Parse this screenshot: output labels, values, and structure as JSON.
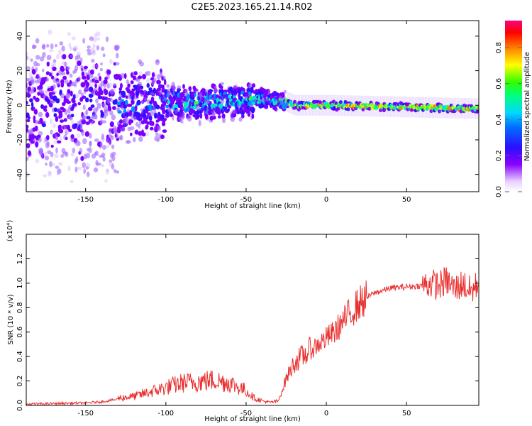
{
  "title": "C2E5.2023.165.21.14.R02",
  "chart_data": [
    {
      "type": "heatmap",
      "name": "spectrogram",
      "xlabel": "Height of straight line (km)",
      "ylabel": "Frequency (Hz)",
      "xlim": [
        -187,
        95
      ],
      "ylim": [
        -50,
        49
      ],
      "xticks": [
        -150,
        -100,
        -50,
        0,
        50
      ],
      "yticks": [
        -40,
        -20,
        0,
        20,
        40
      ],
      "band_center_hz": [
        {
          "x": -187,
          "y": -2
        },
        {
          "x": -150,
          "y": -1
        },
        {
          "x": -120,
          "y": 0
        },
        {
          "x": -100,
          "y": 2
        },
        {
          "x": -80,
          "y": 1
        },
        {
          "x": -60,
          "y": 2
        },
        {
          "x": -50,
          "y": 3
        },
        {
          "x": -40,
          "y": 4
        },
        {
          "x": -30,
          "y": 3
        },
        {
          "x": -25,
          "y": 2
        },
        {
          "x": -20,
          "y": 0
        },
        {
          "x": 0,
          "y": 0
        },
        {
          "x": 50,
          "y": -1
        },
        {
          "x": 95,
          "y": -2
        }
      ],
      "colorbar": {
        "label": "Normalized spectral amplitude",
        "range": [
          0.0,
          0.95
        ],
        "ticks": [
          0.0,
          0.2,
          0.4,
          0.6,
          0.8
        ]
      }
    },
    {
      "type": "line",
      "name": "snr",
      "xlabel": "Height of straight line (km)",
      "ylabel": "SNR (10 * v/v)",
      "scale_label": "(x10⁴)",
      "xlim": [
        -187,
        95
      ],
      "ylim": [
        0,
        1.4
      ],
      "xticks": [
        -150,
        -100,
        -50,
        0,
        50
      ],
      "yticks": [
        0.0,
        0.2,
        0.4,
        0.6,
        0.8,
        1.0,
        1.2
      ],
      "series": [
        {
          "name": "SNR",
          "color": "#e8302f",
          "x": [
            -187,
            -170,
            -150,
            -140,
            -130,
            -120,
            -110,
            -100,
            -90,
            -80,
            -70,
            -60,
            -50,
            -45,
            -40,
            -35,
            -30,
            -25,
            -20,
            -15,
            -10,
            -5,
            0,
            5,
            10,
            15,
            20,
            25,
            30,
            35,
            40,
            50,
            60,
            65,
            70,
            75,
            80,
            85,
            90,
            95
          ],
          "values": [
            0.01,
            0.015,
            0.02,
            0.03,
            0.05,
            0.06,
            0.09,
            0.12,
            0.15,
            0.16,
            0.17,
            0.15,
            0.1,
            0.05,
            0.03,
            0.02,
            0.03,
            0.22,
            0.35,
            0.4,
            0.45,
            0.5,
            0.55,
            0.6,
            0.68,
            0.76,
            0.83,
            0.88,
            0.92,
            0.94,
            0.96,
            0.97,
            0.98,
            1.0,
            0.98,
            1.02,
            0.95,
            1.0,
            0.93,
            1.0
          ]
        }
      ]
    }
  ]
}
